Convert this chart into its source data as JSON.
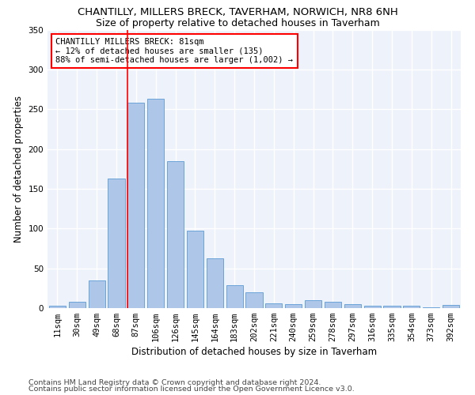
{
  "title": "CHANTILLY, MILLERS BRECK, TAVERHAM, NORWICH, NR8 6NH",
  "subtitle": "Size of property relative to detached houses in Taverham",
  "xlabel": "Distribution of detached houses by size in Taverham",
  "ylabel": "Number of detached properties",
  "categories": [
    "11sqm",
    "30sqm",
    "49sqm",
    "68sqm",
    "87sqm",
    "106sqm",
    "126sqm",
    "145sqm",
    "164sqm",
    "183sqm",
    "202sqm",
    "221sqm",
    "240sqm",
    "259sqm",
    "278sqm",
    "297sqm",
    "316sqm",
    "335sqm",
    "354sqm",
    "373sqm",
    "392sqm"
  ],
  "values": [
    3,
    8,
    35,
    163,
    258,
    263,
    185,
    97,
    63,
    29,
    20,
    6,
    5,
    10,
    8,
    5,
    3,
    3,
    3,
    1,
    4
  ],
  "bar_color": "#aec6e8",
  "bar_edge_color": "#5b9bd5",
  "vline_x_idx": 4,
  "vline_color": "red",
  "annotation_text": "CHANTILLY MILLERS BRECK: 81sqm\n← 12% of detached houses are smaller (135)\n88% of semi-detached houses are larger (1,002) →",
  "annotation_box_color": "white",
  "annotation_box_edge_color": "red",
  "ylim": [
    0,
    350
  ],
  "yticks": [
    0,
    50,
    100,
    150,
    200,
    250,
    300,
    350
  ],
  "footer1": "Contains HM Land Registry data © Crown copyright and database right 2024.",
  "footer2": "Contains public sector information licensed under the Open Government Licence v3.0.",
  "bg_color": "#eef2fb",
  "grid_color": "white",
  "title_fontsize": 9.5,
  "subtitle_fontsize": 9,
  "axis_label_fontsize": 8.5,
  "tick_fontsize": 7.5,
  "footer_fontsize": 6.8
}
